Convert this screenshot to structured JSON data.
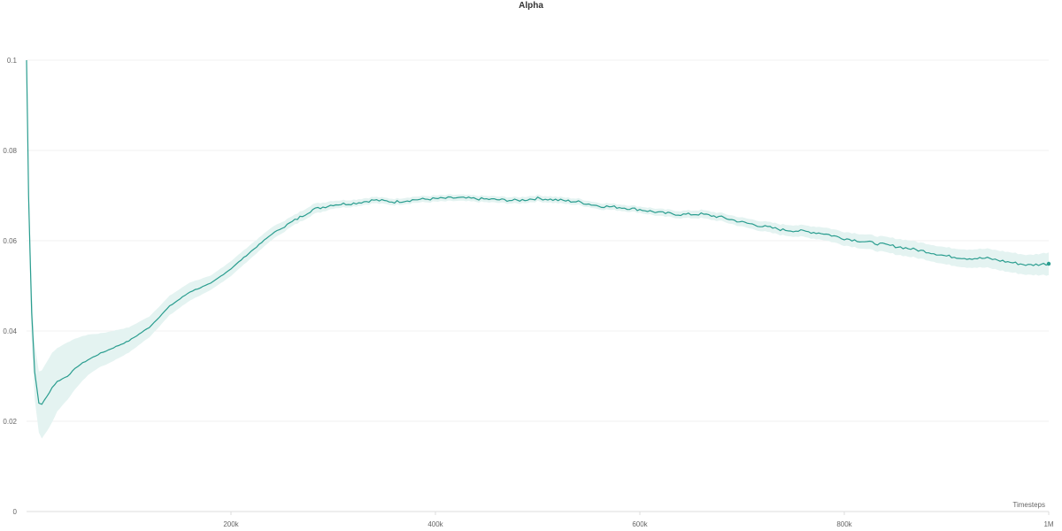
{
  "chart_data": {
    "type": "line",
    "title": "Alpha",
    "xlabel": "Timesteps",
    "ylabel": "",
    "xlim": [
      0,
      1000000
    ],
    "ylim": [
      0,
      0.1
    ],
    "grid": true,
    "x_ticks": [
      200000,
      400000,
      600000,
      800000,
      1000000
    ],
    "x_tick_labels": [
      "200k",
      "400k",
      "600k",
      "800k",
      "1M"
    ],
    "y_ticks": [
      0,
      0.02,
      0.04,
      0.06,
      0.08,
      0.1
    ],
    "y_tick_labels": [
      "0",
      "0.02",
      "0.04",
      "0.06",
      "0.08",
      "0.1"
    ],
    "series_color": "#2a9d8f",
    "band_color": "#e4f3f1",
    "series": [
      {
        "x": [
          0,
          2000,
          5000,
          8000,
          12000,
          15000,
          20000,
          25000,
          30000,
          40000,
          50000,
          60000,
          70000,
          80000,
          100000,
          120000,
          140000,
          160000,
          180000,
          200000,
          220000,
          240000,
          260000,
          280000,
          300000,
          320000,
          340000,
          360000,
          380000,
          400000,
          420000,
          440000,
          460000,
          480000,
          500000,
          520000,
          540000,
          560000,
          580000,
          600000,
          620000,
          640000,
          660000,
          680000,
          700000,
          720000,
          740000,
          760000,
          780000,
          800000,
          820000,
          840000,
          860000,
          880000,
          900000,
          920000,
          940000,
          960000,
          980000,
          1000000
        ],
        "values": [
          0.1,
          0.07,
          0.044,
          0.031,
          0.024,
          0.0238,
          0.0255,
          0.0275,
          0.0288,
          0.03,
          0.0322,
          0.0336,
          0.0348,
          0.0358,
          0.0378,
          0.0408,
          0.0455,
          0.0487,
          0.0505,
          0.0538,
          0.0577,
          0.0615,
          0.0642,
          0.0669,
          0.068,
          0.0683,
          0.069,
          0.0686,
          0.0691,
          0.0693,
          0.0695,
          0.0693,
          0.0691,
          0.0689,
          0.0694,
          0.069,
          0.0686,
          0.0677,
          0.0674,
          0.0669,
          0.0662,
          0.0658,
          0.0659,
          0.0652,
          0.0641,
          0.0632,
          0.0624,
          0.0621,
          0.0616,
          0.0605,
          0.0598,
          0.0591,
          0.0584,
          0.0576,
          0.0566,
          0.0561,
          0.0561,
          0.0553,
          0.0546,
          0.0549
        ],
        "lower": [
          0.1,
          0.066,
          0.038,
          0.025,
          0.0175,
          0.0162,
          0.0178,
          0.0198,
          0.0222,
          0.0248,
          0.0278,
          0.0302,
          0.0318,
          0.0328,
          0.0352,
          0.0386,
          0.0435,
          0.0468,
          0.049,
          0.0522,
          0.0562,
          0.0602,
          0.0632,
          0.0658,
          0.0672,
          0.0676,
          0.0683,
          0.0679,
          0.0684,
          0.0686,
          0.0688,
          0.0686,
          0.0684,
          0.0682,
          0.0687,
          0.0683,
          0.0679,
          0.067,
          0.0667,
          0.0662,
          0.0654,
          0.065,
          0.065,
          0.0643,
          0.0631,
          0.0621,
          0.0612,
          0.0608,
          0.0602,
          0.059,
          0.0582,
          0.0574,
          0.0566,
          0.0558,
          0.0547,
          0.0541,
          0.054,
          0.0531,
          0.0524,
          0.0524
        ],
        "upper": [
          0.1,
          0.074,
          0.05,
          0.037,
          0.031,
          0.0313,
          0.0332,
          0.0352,
          0.0362,
          0.0375,
          0.0385,
          0.0392,
          0.0394,
          0.0398,
          0.0408,
          0.0432,
          0.0478,
          0.0508,
          0.0522,
          0.0555,
          0.0593,
          0.063,
          0.0654,
          0.0681,
          0.0689,
          0.0691,
          0.0697,
          0.0693,
          0.0698,
          0.07,
          0.0702,
          0.07,
          0.0698,
          0.0696,
          0.0701,
          0.0697,
          0.0693,
          0.0684,
          0.0681,
          0.0676,
          0.067,
          0.0666,
          0.0668,
          0.0661,
          0.0651,
          0.0643,
          0.0636,
          0.0634,
          0.063,
          0.062,
          0.0614,
          0.0608,
          0.0602,
          0.0594,
          0.0585,
          0.0581,
          0.0582,
          0.0575,
          0.0568,
          0.0574
        ]
      }
    ]
  }
}
